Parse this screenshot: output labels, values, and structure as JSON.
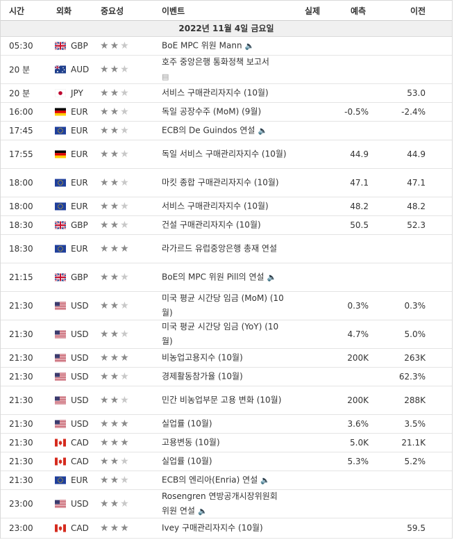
{
  "header": {
    "time": "시간",
    "currency": "외화",
    "importance": "중요성",
    "event": "이벤트",
    "actual": "실제",
    "forecast": "예측",
    "previous": "이전"
  },
  "date_label": "2022년 11월 4일 금요일",
  "icons": {
    "speaker": "speaker-icon",
    "document": "document-icon",
    "star": "star-icon"
  },
  "rows": [
    {
      "time": "05:30",
      "flag": "gb",
      "currency": "GBP",
      "stars": 2,
      "event": "BoE MPC 위원 Mann",
      "icon": "speaker",
      "actual": "",
      "forecast": "",
      "previous": ""
    },
    {
      "time": "20 분",
      "flag": "au",
      "currency": "AUD",
      "stars": 2,
      "event": "호주 중앙은행 통화정책 보고서",
      "icon": "document",
      "actual": "",
      "forecast": "",
      "previous": ""
    },
    {
      "time": "20 분",
      "flag": "jp",
      "currency": "JPY",
      "stars": 2,
      "event": "서비스 구매관리자지수 (10월)",
      "icon": "",
      "actual": "",
      "forecast": "",
      "previous": "53.0"
    },
    {
      "time": "16:00",
      "flag": "de",
      "currency": "EUR",
      "stars": 2,
      "event": "독일 공장수주 (MoM) (9월)",
      "icon": "",
      "actual": "",
      "forecast": "-0.5%",
      "previous": "-2.4%"
    },
    {
      "time": "17:45",
      "flag": "eu",
      "currency": "EUR",
      "stars": 2,
      "event": "ECB의 De Guindos 연설",
      "icon": "speaker",
      "actual": "",
      "forecast": "",
      "previous": ""
    },
    {
      "time": "17:55",
      "flag": "de",
      "currency": "EUR",
      "stars": 2,
      "event": "독일 서비스 구매관리자지수 (10월)",
      "icon": "",
      "actual": "",
      "forecast": "44.9",
      "previous": "44.9"
    },
    {
      "time": "18:00",
      "flag": "eu",
      "currency": "EUR",
      "stars": 2,
      "event": "마킷 종합 구매관리자지수 (10월)",
      "icon": "",
      "actual": "",
      "forecast": "47.1",
      "previous": "47.1"
    },
    {
      "time": "18:00",
      "flag": "eu",
      "currency": "EUR",
      "stars": 2,
      "event": "서비스 구매관리자지수 (10월)",
      "icon": "",
      "actual": "",
      "forecast": "48.2",
      "previous": "48.2"
    },
    {
      "time": "18:30",
      "flag": "gb",
      "currency": "GBP",
      "stars": 2,
      "event": "건설 구매관리자지수 (10월)",
      "icon": "",
      "actual": "",
      "forecast": "50.5",
      "previous": "52.3"
    },
    {
      "time": "18:30",
      "flag": "eu",
      "currency": "EUR",
      "stars": 3,
      "event": "라가르드 유럽중앙은행 총재 연설",
      "icon": "",
      "actual": "",
      "forecast": "",
      "previous": ""
    },
    {
      "time": "21:15",
      "flag": "gb",
      "currency": "GBP",
      "stars": 2,
      "event": "BoE의 MPC 위원 Pill의 연설",
      "icon": "speaker",
      "actual": "",
      "forecast": "",
      "previous": ""
    },
    {
      "time": "21:30",
      "flag": "us",
      "currency": "USD",
      "stars": 2,
      "event": "미국 평균 시간당 임금 (MoM) (10월)",
      "icon": "",
      "actual": "",
      "forecast": "0.3%",
      "previous": "0.3%"
    },
    {
      "time": "21:30",
      "flag": "us",
      "currency": "USD",
      "stars": 2,
      "event": "미국 평균 시간당 임금 (YoY) (10월)",
      "icon": "",
      "actual": "",
      "forecast": "4.7%",
      "previous": "5.0%"
    },
    {
      "time": "21:30",
      "flag": "us",
      "currency": "USD",
      "stars": 3,
      "event": "비농업고용지수 (10월)",
      "icon": "",
      "actual": "",
      "forecast": "200K",
      "previous": "263K"
    },
    {
      "time": "21:30",
      "flag": "us",
      "currency": "USD",
      "stars": 2,
      "event": "경제활동참가율 (10월)",
      "icon": "",
      "actual": "",
      "forecast": "",
      "previous": "62.3%"
    },
    {
      "time": "21:30",
      "flag": "us",
      "currency": "USD",
      "stars": 2,
      "event": "민간 비농업부문 고용 변화 (10월)",
      "icon": "",
      "actual": "",
      "forecast": "200K",
      "previous": "288K"
    },
    {
      "time": "21:30",
      "flag": "us",
      "currency": "USD",
      "stars": 3,
      "event": "실업률 (10월)",
      "icon": "",
      "actual": "",
      "forecast": "3.6%",
      "previous": "3.5%"
    },
    {
      "time": "21:30",
      "flag": "ca",
      "currency": "CAD",
      "stars": 3,
      "event": "고용변동 (10월)",
      "icon": "",
      "actual": "",
      "forecast": "5.0K",
      "previous": "21.1K"
    },
    {
      "time": "21:30",
      "flag": "ca",
      "currency": "CAD",
      "stars": 2,
      "event": "실업률 (10월)",
      "icon": "",
      "actual": "",
      "forecast": "5.3%",
      "previous": "5.2%"
    },
    {
      "time": "21:30",
      "flag": "eu",
      "currency": "EUR",
      "stars": 2,
      "event": "ECB의 엔리아(Enria) 연설",
      "icon": "speaker",
      "actual": "",
      "forecast": "",
      "previous": ""
    },
    {
      "time": "23:00",
      "flag": "us",
      "currency": "USD",
      "stars": 2,
      "event": "Rosengren 연방공개시장위원회 위원 연설",
      "icon": "speaker",
      "actual": "",
      "forecast": "",
      "previous": ""
    },
    {
      "time": "23:00",
      "flag": "ca",
      "currency": "CAD",
      "stars": 3,
      "event": "Ivey 구매관리자지수 (10월)",
      "icon": "",
      "actual": "",
      "forecast": "",
      "previous": "59.5"
    }
  ]
}
